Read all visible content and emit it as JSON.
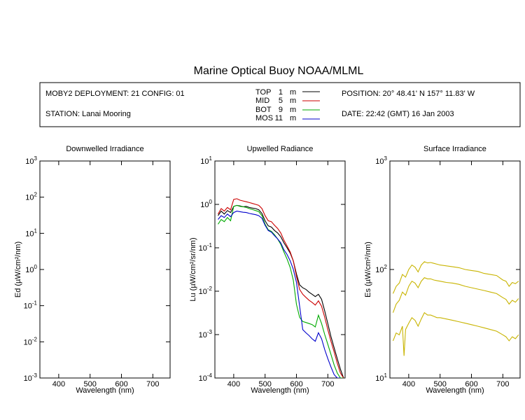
{
  "title": "Marine Optical Buoy NOAA/MLML",
  "info": {
    "deployment": "MOBY2 DEPLOYMENT: 21 CONFIG: 01",
    "station": "STATION: Lanai Mooring",
    "position": "POSITION: 20° 48.41' N   157° 11.83' W",
    "date": "DATE: 22:42 (GMT) 16 Jan 2003"
  },
  "legend": [
    {
      "name": "TOP",
      "depth": "1",
      "unit": "m",
      "color": "#000000"
    },
    {
      "name": "MID",
      "depth": "5",
      "unit": "m",
      "color": "#cc0000"
    },
    {
      "name": "BOT",
      "depth": "9",
      "unit": "m",
      "color": "#00aa00"
    },
    {
      "name": "MOS",
      "depth": "11",
      "unit": "m",
      "color": "#0000cc"
    }
  ],
  "colors": {
    "top": "#000000",
    "mid": "#cc0000",
    "bot": "#00aa00",
    "mos": "#0000cc",
    "surface": "#c8b400"
  },
  "chart_data": [
    {
      "type": "line",
      "title": "Downwelled Irradiance",
      "xlabel": "Wavelength (nm)",
      "ylabel": "Ed  (µW/cm²/nm)",
      "ylog": true,
      "xlim": [
        340,
        755
      ],
      "ylim": [
        0.001,
        1000
      ],
      "xticks": [
        "400",
        "500",
        "600",
        "700"
      ],
      "yticks": [
        "10-3",
        "10-2",
        "10-1",
        "100",
        "101",
        "102",
        "103"
      ],
      "series": []
    },
    {
      "type": "line",
      "title": "Upwelled Radiance",
      "xlabel": "Wavelength (nm)",
      "ylabel": "Lu  (µW/cm²/sr/nm)",
      "ylog": true,
      "xlim": [
        340,
        755
      ],
      "ylim": [
        0.0001,
        10
      ],
      "xticks": [
        "400",
        "500",
        "600",
        "700"
      ],
      "yticks": [
        "10-4",
        "10-3",
        "10-2",
        "10-1",
        "100",
        "101"
      ],
      "series": [
        {
          "name": "TOP",
          "color": "#000000",
          "x": [
            350,
            360,
            370,
            380,
            390,
            400,
            410,
            420,
            430,
            440,
            450,
            460,
            470,
            480,
            490,
            500,
            510,
            520,
            530,
            540,
            550,
            560,
            570,
            580,
            590,
            600,
            610,
            620,
            630,
            640,
            650,
            660,
            670,
            680,
            690,
            700,
            710,
            720,
            730,
            740,
            750
          ],
          "y": [
            0.55,
            0.7,
            0.6,
            0.72,
            0.65,
            0.9,
            0.95,
            0.92,
            0.88,
            0.9,
            0.85,
            0.82,
            0.8,
            0.75,
            0.62,
            0.42,
            0.32,
            0.3,
            0.25,
            0.22,
            0.18,
            0.13,
            0.1,
            0.075,
            0.05,
            0.025,
            0.014,
            0.012,
            0.011,
            0.0095,
            0.0085,
            0.0075,
            0.0085,
            0.0065,
            0.0035,
            0.0018,
            0.0009,
            0.0005,
            0.00028,
            0.00016,
            0.0001
          ]
        },
        {
          "name": "MID",
          "color": "#cc0000",
          "x": [
            350,
            360,
            370,
            380,
            390,
            400,
            410,
            420,
            430,
            440,
            450,
            460,
            470,
            480,
            490,
            500,
            510,
            520,
            530,
            540,
            550,
            560,
            570,
            580,
            590,
            600,
            610,
            620,
            630,
            640,
            650,
            660,
            670,
            680,
            690,
            700,
            710,
            720,
            730,
            740,
            750
          ],
          "y": [
            0.6,
            0.8,
            0.7,
            0.85,
            0.75,
            1.3,
            1.35,
            1.25,
            1.2,
            1.15,
            1.1,
            1.05,
            1.0,
            0.95,
            0.8,
            0.55,
            0.42,
            0.4,
            0.33,
            0.28,
            0.22,
            0.15,
            0.11,
            0.08,
            0.05,
            0.022,
            0.011,
            0.0085,
            0.0072,
            0.0062,
            0.0055,
            0.0048,
            0.006,
            0.0045,
            0.0025,
            0.0013,
            0.0007,
            0.0004,
            0.00022,
            0.00013,
            0.0001
          ]
        },
        {
          "name": "BOT",
          "color": "#00aa00",
          "x": [
            350,
            360,
            370,
            380,
            390,
            400,
            410,
            420,
            430,
            440,
            450,
            460,
            470,
            480,
            490,
            500,
            510,
            520,
            530,
            540,
            550,
            560,
            570,
            580,
            590,
            600,
            610,
            620,
            630,
            640,
            650,
            660,
            670,
            680,
            690,
            700,
            710,
            720,
            730,
            740,
            750
          ],
          "y": [
            0.35,
            0.45,
            0.4,
            0.5,
            0.42,
            0.9,
            0.95,
            0.9,
            0.88,
            0.85,
            0.8,
            0.76,
            0.72,
            0.68,
            0.55,
            0.35,
            0.26,
            0.24,
            0.2,
            0.16,
            0.12,
            0.08,
            0.055,
            0.035,
            0.018,
            0.005,
            0.0025,
            0.002,
            0.0019,
            0.0018,
            0.0017,
            0.0015,
            0.0028,
            0.0018,
            0.001,
            0.0006,
            0.00035,
            0.0002,
            0.00013,
            0.0001,
            0.0001
          ]
        },
        {
          "name": "MOS",
          "color": "#0000cc",
          "x": [
            350,
            360,
            370,
            380,
            390,
            400,
            410,
            420,
            430,
            440,
            450,
            460,
            470,
            480,
            490,
            500,
            510,
            520,
            530,
            540,
            550,
            560,
            570,
            580,
            590,
            600,
            620,
            630,
            640,
            650,
            660,
            670,
            680,
            690,
            700,
            710,
            720,
            730,
            740
          ],
          "y": [
            0.45,
            0.55,
            0.5,
            0.6,
            0.52,
            0.65,
            0.7,
            0.68,
            0.66,
            0.65,
            0.62,
            0.6,
            0.58,
            0.55,
            0.48,
            0.33,
            0.25,
            0.23,
            0.19,
            0.16,
            0.13,
            0.09,
            0.07,
            0.05,
            0.032,
            0.016,
            0.0013,
            0.0011,
            0.00095,
            0.0008,
            0.0007,
            0.0011,
            0.0008,
            0.00045,
            0.00028,
            0.00018,
            0.00012,
            0.0001,
            0.0001
          ]
        }
      ]
    },
    {
      "type": "line",
      "title": "Surface Irradiance",
      "xlabel": "Wavelength (nm)",
      "ylabel": "Es  (µW/cm²/nm)",
      "ylog": true,
      "xlim": [
        340,
        755
      ],
      "ylim": [
        10,
        1000
      ],
      "xticks": [
        "400",
        "500",
        "600",
        "700"
      ],
      "yticks": [
        "101",
        "102",
        "103"
      ],
      "series": [
        {
          "name": "",
          "color": "#c8b400",
          "x": [
            350,
            360,
            370,
            380,
            390,
            400,
            410,
            420,
            430,
            440,
            450,
            460,
            470,
            480,
            490,
            500,
            520,
            540,
            560,
            580,
            600,
            620,
            640,
            660,
            680,
            700,
            710,
            720,
            730,
            740,
            750
          ],
          "y": [
            60,
            70,
            75,
            90,
            85,
            100,
            110,
            105,
            95,
            110,
            118,
            115,
            116,
            114,
            112,
            110,
            108,
            106,
            104,
            100,
            98,
            96,
            92,
            90,
            88,
            80,
            78,
            70,
            76,
            74,
            78
          ]
        },
        {
          "name": "",
          "color": "#c8b400",
          "x": [
            350,
            360,
            370,
            380,
            390,
            400,
            410,
            420,
            430,
            440,
            450,
            460,
            470,
            480,
            490,
            500,
            520,
            540,
            560,
            580,
            600,
            620,
            640,
            660,
            680,
            700,
            710,
            720,
            730,
            740,
            750
          ],
          "y": [
            40,
            48,
            52,
            62,
            58,
            70,
            78,
            75,
            68,
            78,
            84,
            82,
            82,
            80,
            79,
            78,
            76,
            75,
            73,
            70,
            68,
            66,
            64,
            62,
            60,
            55,
            53,
            48,
            52,
            50,
            54
          ]
        },
        {
          "name": "",
          "color": "#c8b400",
          "x": [
            350,
            360,
            370,
            380,
            385,
            390,
            400,
            410,
            420,
            430,
            440,
            450,
            460,
            470,
            480,
            490,
            500,
            520,
            540,
            560,
            580,
            600,
            620,
            640,
            660,
            680,
            700,
            710,
            720,
            730,
            740,
            750
          ],
          "y": [
            22,
            26,
            25,
            30,
            16,
            28,
            32,
            36,
            34,
            30,
            35,
            40,
            38,
            38,
            37,
            36,
            36,
            35,
            34,
            33,
            32,
            31,
            30,
            29,
            28,
            27,
            25,
            24,
            22,
            24,
            23,
            25
          ]
        }
      ]
    }
  ]
}
